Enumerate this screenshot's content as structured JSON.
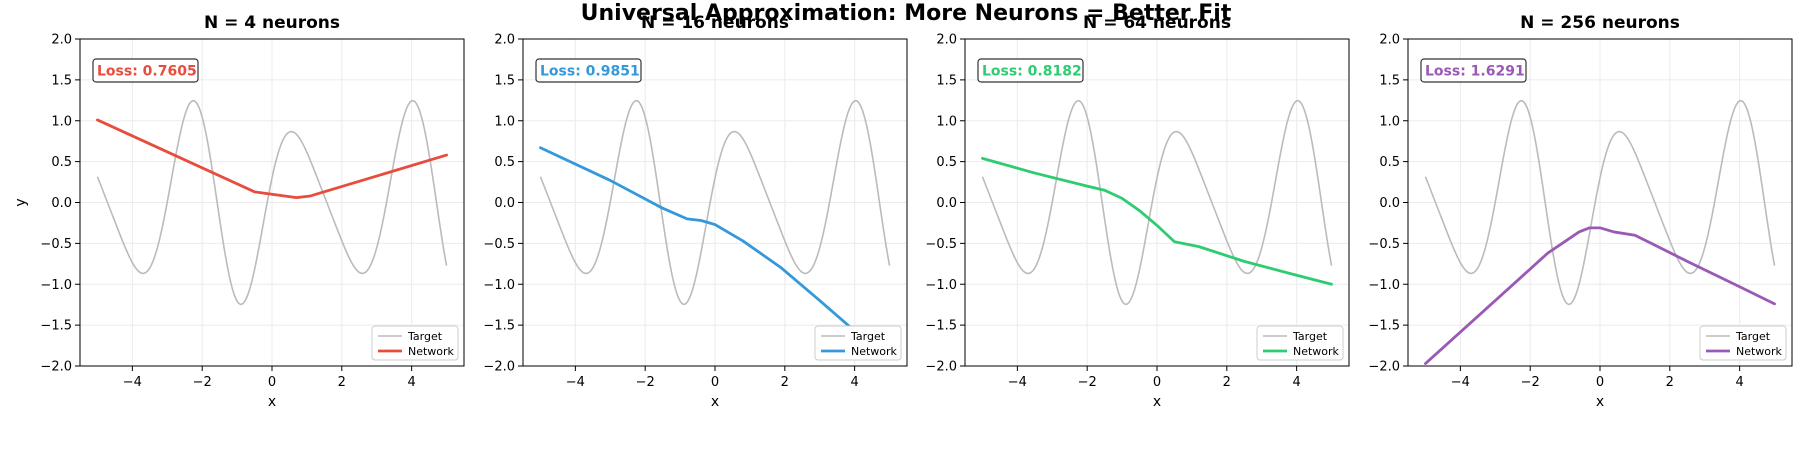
{
  "figure": {
    "suptitle": "Universal Approximation: More Neurons = Better Fit"
  },
  "chart_data": [
    {
      "type": "line",
      "title": "N = 4 neurons",
      "xlabel": "x",
      "ylabel": "y",
      "xlim": [
        -5.5,
        5.5
      ],
      "ylim": [
        -2.0,
        2.0
      ],
      "xticks": [
        -4,
        -2,
        0,
        2,
        4
      ],
      "yticks": [
        -2.0,
        -1.5,
        -1.0,
        -0.5,
        0.0,
        0.5,
        1.0,
        1.5,
        2.0
      ],
      "xtick_labels": [
        "−4",
        "−2",
        "0",
        "2",
        "4"
      ],
      "ytick_labels": [
        "−2.0",
        "−1.5",
        "−1.0",
        "−0.5",
        "0.0",
        "0.5",
        "1.0",
        "1.5",
        "2.0"
      ],
      "grid": true,
      "legend": "lower right",
      "loss_label": "Loss: 0.7605",
      "color": "#e74c3c",
      "series": [
        {
          "name": "Target",
          "color": "#bbbbbb",
          "function": "sin(2x)+0.3cos(3x) (sampled)"
        },
        {
          "name": "Network",
          "color": "#e74c3c",
          "x": [
            -5,
            -0.5,
            0.7,
            1.1,
            5
          ],
          "y": [
            1.01,
            0.13,
            0.06,
            0.08,
            0.58
          ]
        }
      ]
    },
    {
      "type": "line",
      "title": "N = 16 neurons",
      "xlabel": "x",
      "ylabel": "",
      "xlim": [
        -5.5,
        5.5
      ],
      "ylim": [
        -2.0,
        2.0
      ],
      "xticks": [
        -4,
        -2,
        0,
        2,
        4
      ],
      "yticks": [
        -2.0,
        -1.5,
        -1.0,
        -0.5,
        0.0,
        0.5,
        1.0,
        1.5,
        2.0
      ],
      "xtick_labels": [
        "−4",
        "−2",
        "0",
        "2",
        "4"
      ],
      "ytick_labels": [
        "−2.0",
        "−1.5",
        "−1.0",
        "−0.5",
        "0.0",
        "0.5",
        "1.0",
        "1.5",
        "2.0"
      ],
      "grid": true,
      "legend": "lower right",
      "loss_label": "Loss: 0.9851",
      "color": "#3498db",
      "series": [
        {
          "name": "Target",
          "color": "#bbbbbb",
          "function": "sin(2x)+0.3cos(3x) (sampled)"
        },
        {
          "name": "Network",
          "color": "#3498db",
          "x": [
            -5,
            -3,
            -1.5,
            -0.8,
            -0.4,
            0,
            0.8,
            1.9,
            3,
            4.4
          ],
          "y": [
            0.67,
            0.27,
            -0.07,
            -0.2,
            -0.22,
            -0.27,
            -0.47,
            -0.8,
            -1.2,
            -1.72
          ]
        }
      ]
    },
    {
      "type": "line",
      "title": "N = 64 neurons",
      "xlabel": "x",
      "ylabel": "",
      "xlim": [
        -5.5,
        5.5
      ],
      "ylim": [
        -2.0,
        2.0
      ],
      "xticks": [
        -4,
        -2,
        0,
        2,
        4
      ],
      "yticks": [
        -2.0,
        -1.5,
        -1.0,
        -0.5,
        0.0,
        0.5,
        1.0,
        1.5,
        2.0
      ],
      "xtick_labels": [
        "−4",
        "−2",
        "0",
        "2",
        "4"
      ],
      "ytick_labels": [
        "−2.0",
        "−1.5",
        "−1.0",
        "−0.5",
        "0.0",
        "0.5",
        "1.0",
        "1.5",
        "2.0"
      ],
      "grid": true,
      "legend": "lower right",
      "loss_label": "Loss: 0.8182",
      "color": "#2ecc71",
      "series": [
        {
          "name": "Target",
          "color": "#bbbbbb",
          "function": "sin(2x)+0.3cos(3x) (sampled)"
        },
        {
          "name": "Network",
          "color": "#2ecc71",
          "x": [
            -5,
            -3.5,
            -2,
            -1.5,
            -1,
            -0.5,
            0,
            0.5,
            1.2,
            2.5,
            4,
            5
          ],
          "y": [
            0.54,
            0.36,
            0.2,
            0.15,
            0.05,
            -0.1,
            -0.28,
            -0.48,
            -0.54,
            -0.72,
            -0.89,
            -1.0
          ]
        }
      ]
    },
    {
      "type": "line",
      "title": "N = 256 neurons",
      "xlabel": "x",
      "ylabel": "",
      "xlim": [
        -5.5,
        5.5
      ],
      "ylim": [
        -2.0,
        2.0
      ],
      "xticks": [
        -4,
        -2,
        0,
        2,
        4
      ],
      "yticks": [
        -2.0,
        -1.5,
        -1.0,
        -0.5,
        0.0,
        0.5,
        1.0,
        1.5,
        2.0
      ],
      "xtick_labels": [
        "−4",
        "−2",
        "0",
        "2",
        "4"
      ],
      "ytick_labels": [
        "−2.0",
        "−1.5",
        "−1.0",
        "−0.5",
        "0.0",
        "0.5",
        "1.0",
        "1.5",
        "2.0"
      ],
      "grid": true,
      "legend": "lower right",
      "loss_label": "Loss: 1.6291",
      "color": "#9b59b6",
      "series": [
        {
          "name": "Target",
          "color": "#bbbbbb",
          "function": "sin(2x)+0.3cos(3x) (sampled)"
        },
        {
          "name": "Network",
          "color": "#9b59b6",
          "x": [
            -5,
            -3,
            -1.5,
            -0.6,
            -0.3,
            0,
            0.4,
            1,
            2.5,
            4,
            5
          ],
          "y": [
            -1.97,
            -1.2,
            -0.62,
            -0.36,
            -0.31,
            -0.31,
            -0.36,
            -0.4,
            -0.72,
            -1.03,
            -1.24
          ]
        }
      ]
    }
  ]
}
